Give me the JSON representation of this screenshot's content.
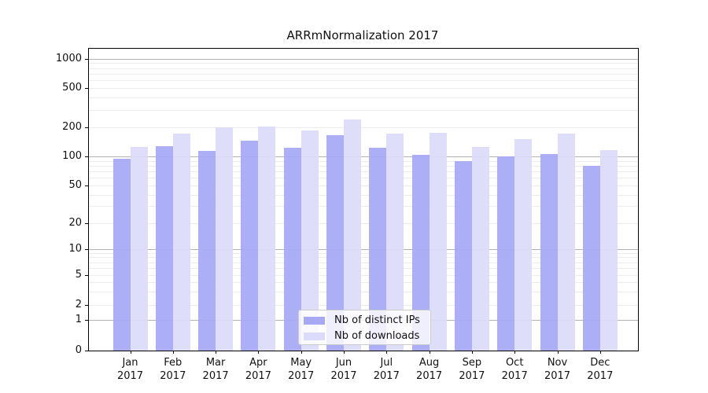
{
  "chart_data": {
    "type": "bar",
    "title": "ARRmNormalization 2017",
    "categories": [
      "Jan 2017",
      "Feb 2017",
      "Mar 2017",
      "Apr 2017",
      "May 2017",
      "Jun 2017",
      "Jul 2017",
      "Aug 2017",
      "Sep 2017",
      "Oct 2017",
      "Nov 2017",
      "Dec 2017"
    ],
    "series": [
      {
        "name": "Nb of distinct IPs",
        "color": "#a7a9f5",
        "values": [
          94,
          127,
          113,
          145,
          123,
          164,
          122,
          104,
          89,
          100,
          105,
          80
        ]
      },
      {
        "name": "Nb of downloads",
        "color": "#dbdcfb",
        "values": [
          125,
          170,
          197,
          201,
          184,
          238,
          172,
          174,
          124,
          150,
          172,
          115
        ]
      }
    ],
    "xlabel": "",
    "ylabel": "",
    "y_ticks": [
      0,
      1,
      2,
      5,
      10,
      20,
      50,
      100,
      200,
      500,
      1000
    ],
    "ylim": [
      0,
      1000
    ],
    "y_scale": "symlog",
    "grid": true,
    "legend_position": "lower center"
  },
  "colors": {
    "grid_minor": "#ececec",
    "grid_major": "#b3b3b3",
    "spine": "#000000",
    "background": "#ffffff",
    "text": "#111111"
  }
}
